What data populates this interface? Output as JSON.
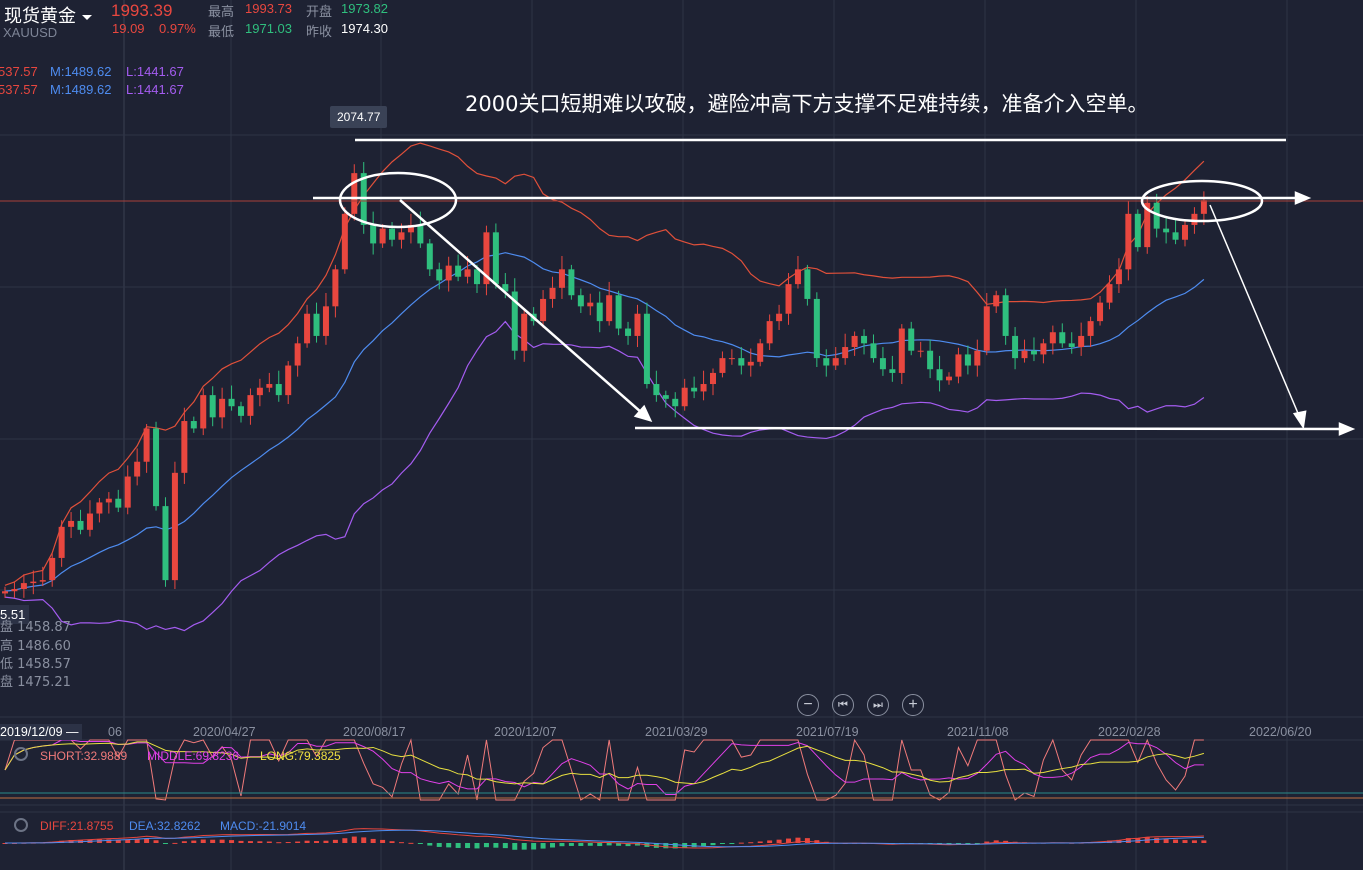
{
  "header": {
    "instrument": "现货黄金",
    "symbol": "XAUUSD",
    "last": "1993.39",
    "change": "19.09",
    "change_pct": "0.97%",
    "high_label": "最高",
    "high": "1993.73",
    "low_label": "最低",
    "low": "1971.03",
    "open_label": "开盘",
    "open": "1973.82",
    "prev_close_label": "昨收",
    "prev_close": "1974.30"
  },
  "boll_legend": [
    {
      "u": "537.57",
      "m": "M:1489.62",
      "l": "L:1441.67"
    },
    {
      "u": "537.57",
      "m": "M:1489.62",
      "l": "L:1441.67"
    }
  ],
  "annotation_text": "2000关口短期难以攻破，避险冲高下方支撑不足难持续，准备介入空单。",
  "peak_tooltip": "2074.77",
  "crosshair_info": {
    "price_tag": "5.51",
    "rows": [
      "盘 1458.87",
      "高 1486.60",
      "低 1458.57",
      "盘 1475.21"
    ]
  },
  "controls": {
    "zoom_out": "−",
    "prev": "⏮",
    "next": "⏭",
    "zoom_in": "+"
  },
  "date_axis": {
    "cursor_date": "2019/12/09 —",
    "partial": "06",
    "dates": [
      "2020/04/27",
      "2020/08/17",
      "2020/12/07",
      "2021/03/29",
      "2021/07/19",
      "2021/11/08",
      "2022/02/28",
      "2022/06/20"
    ]
  },
  "oscillator": {
    "short": "SHORT:32.9889",
    "middle": "MIDDLE:69.8236",
    "long": "LONG:79.3825"
  },
  "macd": {
    "diff": "DIFF:21.8755",
    "dea": "DEA:32.8262",
    "macd": "MACD:-21.9014"
  },
  "colors": {
    "up": "#e8473f",
    "down": "#2fbf7e",
    "upper": "#e0503a",
    "middle": "#4e8cf0",
    "lower": "#a45cf0"
  },
  "chart_data": {
    "type": "candlestick",
    "title": "现货黄金 XAUUSD weekly",
    "x_start": "2019/11/11",
    "interval": "week",
    "ylim": [
      1400,
      2110
    ],
    "peak": 2074.77,
    "closes": [
      1465,
      1468,
      1476,
      1478,
      1480,
      1510,
      1552,
      1560,
      1548,
      1570,
      1585,
      1590,
      1578,
      1620,
      1640,
      1685,
      1580,
      1480,
      1625,
      1695,
      1685,
      1730,
      1700,
      1725,
      1715,
      1702,
      1730,
      1740,
      1745,
      1730,
      1770,
      1800,
      1840,
      1810,
      1850,
      1900,
      1975,
      2030,
      1960,
      1935,
      1955,
      1940,
      1950,
      1960,
      1935,
      1900,
      1885,
      1905,
      1890,
      1900,
      1880,
      1950,
      1880,
      1870,
      1790,
      1840,
      1830,
      1860,
      1875,
      1900,
      1865,
      1850,
      1855,
      1830,
      1865,
      1820,
      1810,
      1840,
      1745,
      1730,
      1725,
      1715,
      1740,
      1735,
      1745,
      1760,
      1780,
      1780,
      1770,
      1775,
      1800,
      1830,
      1840,
      1880,
      1900,
      1860,
      1780,
      1770,
      1780,
      1795,
      1810,
      1800,
      1780,
      1765,
      1760,
      1820,
      1790,
      1790,
      1765,
      1750,
      1755,
      1785,
      1770,
      1790,
      1850,
      1865,
      1810,
      1780,
      1790,
      1785,
      1800,
      1815,
      1800,
      1795,
      1810,
      1830,
      1855,
      1880,
      1900,
      1975,
      1930,
      1990,
      1955,
      1950,
      1940,
      1960,
      1975,
      1993.39
    ],
    "series": [
      "BOLL upper",
      "BOLL middle",
      "BOLL lower"
    ]
  }
}
